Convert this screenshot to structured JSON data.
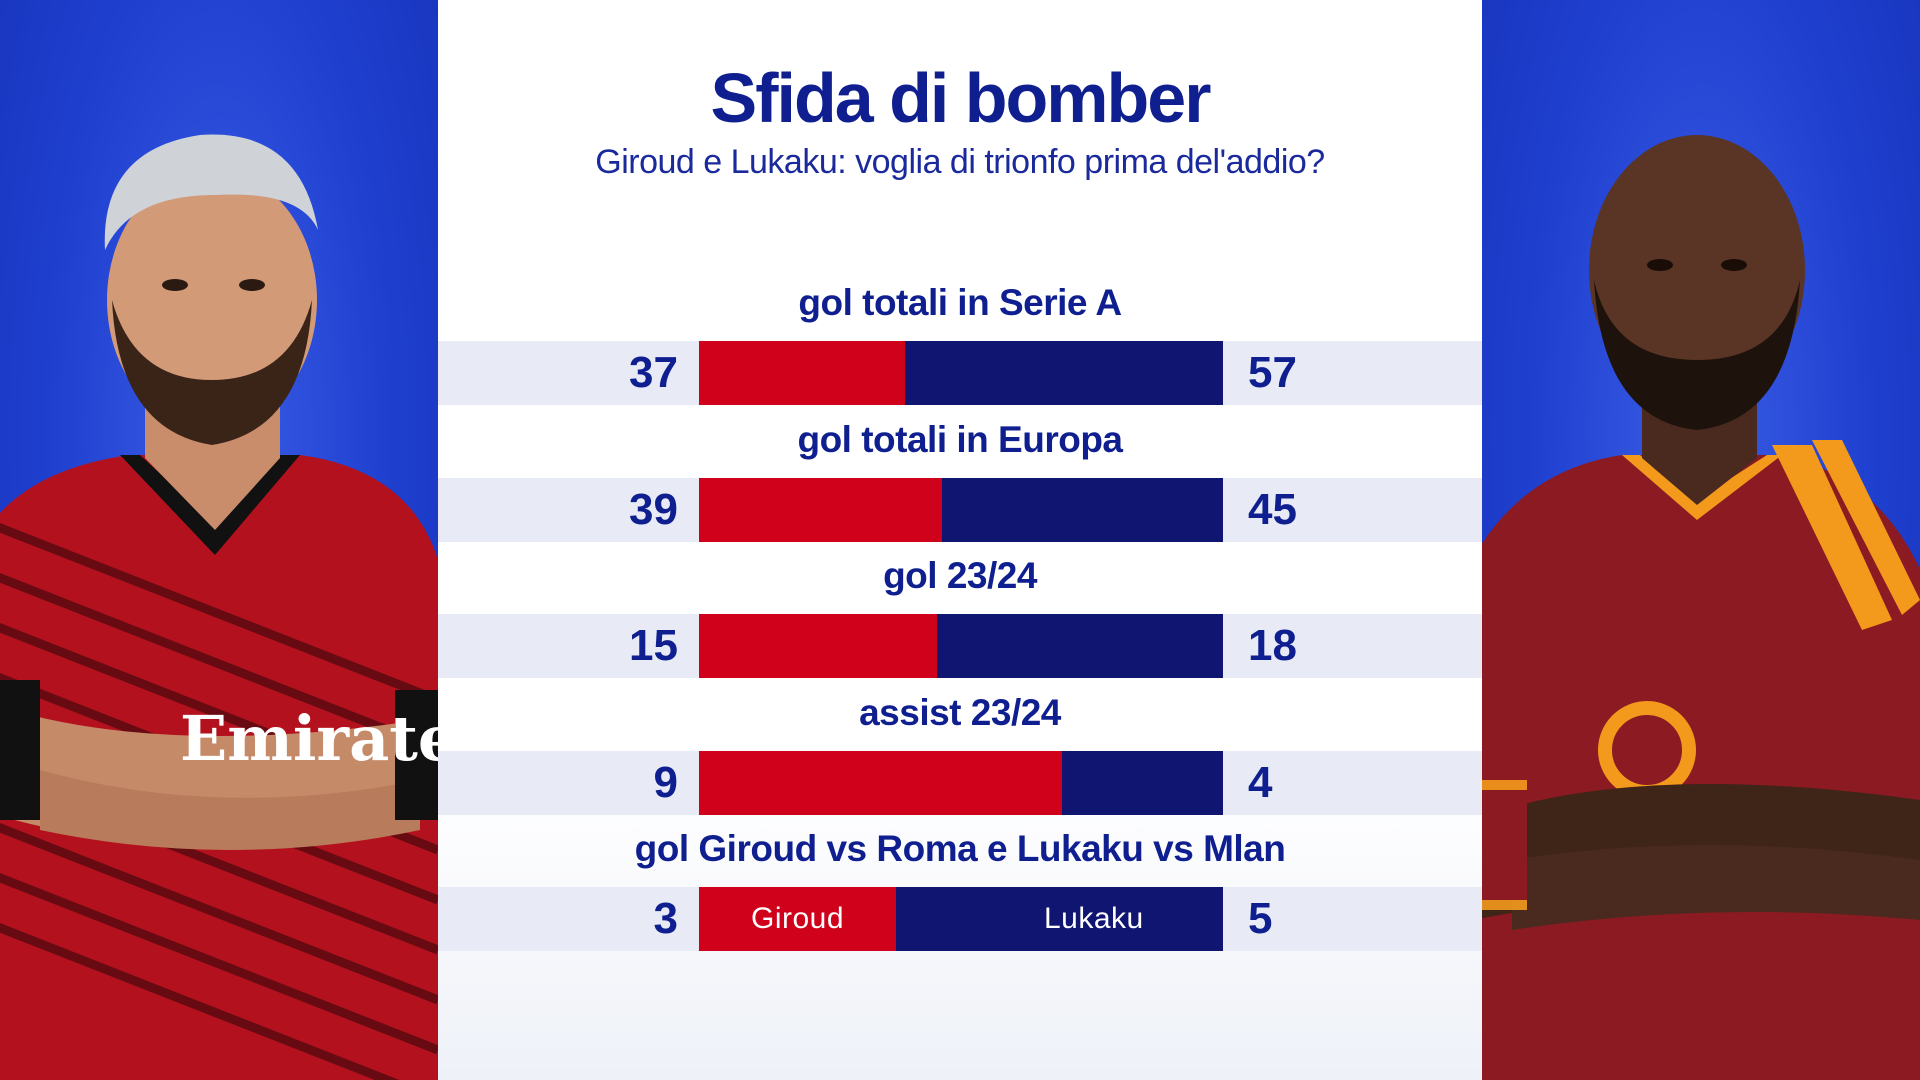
{
  "title": "Sfida di bomber",
  "subtitle": "Giroud e Lukaku: voglia di trionfo prima del'addio?",
  "colors": {
    "giroud": "#d0021b",
    "lukaku": "#101572",
    "text": "#0f1f8f",
    "background": "#1f3fcf"
  },
  "players": {
    "left": {
      "name": "Giroud",
      "kit": "AC Milan"
    },
    "right": {
      "name": "Lukaku",
      "kit": "AS Roma"
    }
  },
  "chart_data": {
    "type": "bar",
    "orientation": "horizontal-stacked-comparison",
    "categories": [
      "gol totali in Serie A",
      "gol totali in Europa",
      "gol 23/24",
      "assist 23/24",
      "gol Giroud vs Roma e Lukaku vs Mlan"
    ],
    "series": [
      {
        "name": "Giroud",
        "values": [
          37,
          39,
          15,
          9,
          3
        ]
      },
      {
        "name": "Lukaku",
        "values": [
          57,
          45,
          18,
          4,
          5
        ]
      }
    ],
    "bar_labels": {
      "left": "Giroud",
      "right": "Lukaku"
    }
  }
}
